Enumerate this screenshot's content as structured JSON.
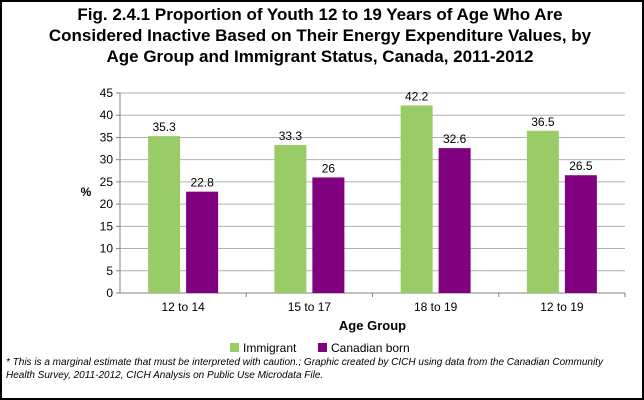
{
  "title_lines": [
    "Fig. 2.4.1 Proportion of Youth 12 to 19 Years of Age Who Are",
    "Considered Inactive Based on Their  Energy Expenditure Values, by",
    "Age Group and Immigrant Status, Canada, 2011-2012"
  ],
  "footnote": "* This is a marginal estimate that must be interpreted with caution.; Graphic created by CICH using  data from the Canadian Community Health Survey,  2011-2012, CICH Analysis on Public Use Microdata File.",
  "chart_data": {
    "type": "bar",
    "title": "Fig. 2.4.1 Proportion of Youth 12 to 19 Years of Age Who Are Considered Inactive Based on Their  Energy Expenditure Values, by Age Group and Immigrant Status, Canada, 2011-2012",
    "xlabel": "Age Group",
    "ylabel": "%",
    "categories": [
      "12 to 14",
      "15 to 17",
      "18 to 19",
      "12 to 19"
    ],
    "series": [
      {
        "name": "Immigrant",
        "values": [
          35.3,
          33.3,
          42.2,
          36.5
        ],
        "labels": [
          "35.3",
          "33.3",
          "42.2",
          "36.5"
        ],
        "color": "#99cc66"
      },
      {
        "name": "Canadian born",
        "values": [
          22.8,
          26,
          32.6,
          26.5
        ],
        "labels": [
          "22.8",
          "26",
          "32.6",
          "26.5"
        ],
        "color": "#800080"
      }
    ],
    "ylim": [
      0,
      45
    ],
    "yticks": [
      "0",
      "5",
      "10",
      "15",
      "20",
      "25",
      "30",
      "35",
      "40",
      "45"
    ],
    "grid": true,
    "legend": "bottom"
  }
}
